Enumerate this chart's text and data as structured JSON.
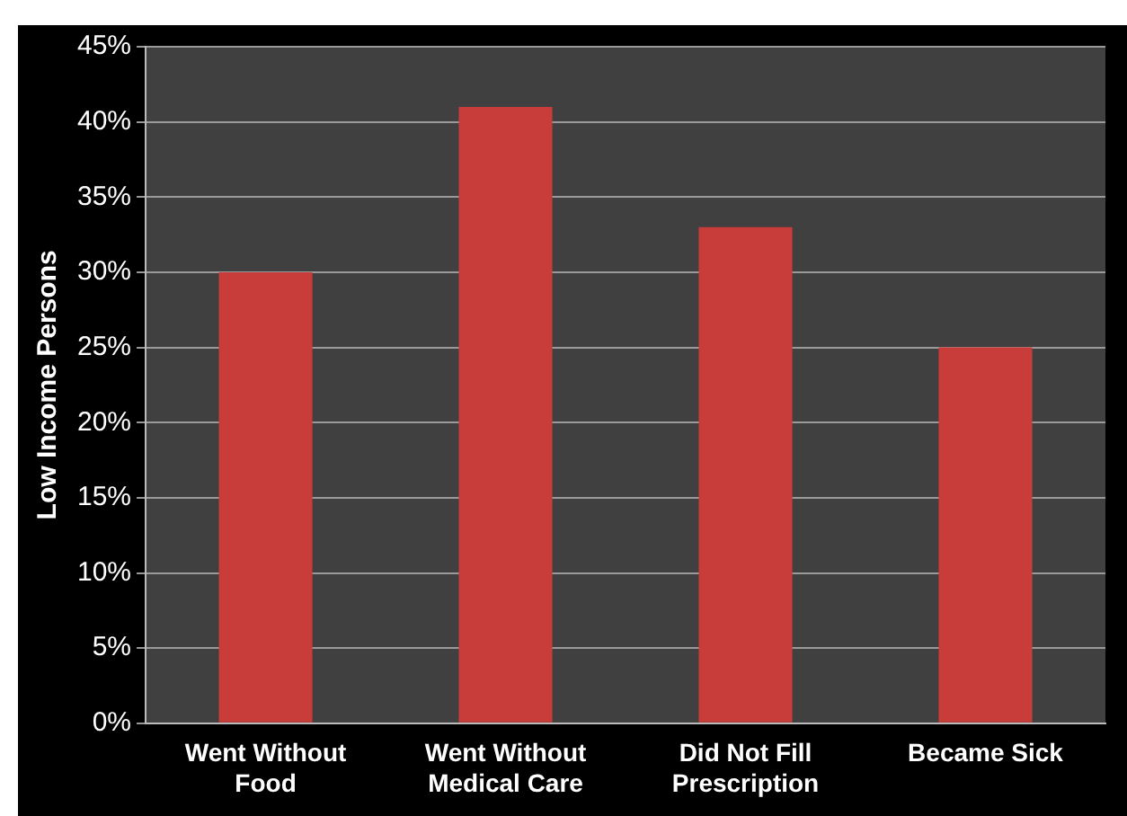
{
  "chart_data": {
    "type": "bar",
    "ylabel": "Low Income Persons",
    "categories": [
      "Went Without Food",
      "Went Without Medical Care",
      "Did Not Fill Prescription",
      "Became Sick"
    ],
    "values": [
      30,
      41,
      33,
      25
    ],
    "color": "#c83c3a",
    "ylim": [
      0,
      45
    ],
    "yticks": [
      {
        "value": 0,
        "label": "0%"
      },
      {
        "value": 5,
        "label": "5%"
      },
      {
        "value": 10,
        "label": "10%"
      },
      {
        "value": 15,
        "label": "15%"
      },
      {
        "value": 20,
        "label": "20%"
      },
      {
        "value": 25,
        "label": "25%"
      },
      {
        "value": 30,
        "label": "30%"
      },
      {
        "value": 35,
        "label": "35%"
      },
      {
        "value": 40,
        "label": "40%"
      },
      {
        "value": 45,
        "label": "45%"
      }
    ],
    "grid": "y"
  }
}
